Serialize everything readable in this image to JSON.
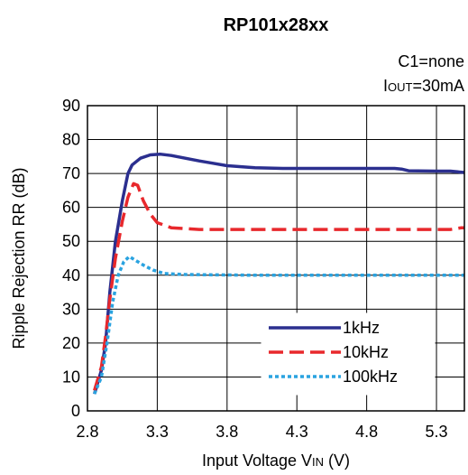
{
  "chart_data": {
    "type": "line",
    "title": "RP101x28xx",
    "annotations": {
      "line1": "C1=none",
      "line2_main": "I",
      "line2_sub": "OUT",
      "line2_rest": "=30mA"
    },
    "xlabel": {
      "main": "Input Voltage V",
      "sub": "IN",
      "rest": " (V)"
    },
    "ylabel": "Ripple Rejection RR (dB)",
    "xlim": [
      2.8,
      5.5
    ],
    "ylim": [
      0,
      90
    ],
    "xticks": [
      "2.8",
      "3.3",
      "3.8",
      "4.3",
      "4.8",
      "5.3"
    ],
    "yticks": [
      "0",
      "10",
      "20",
      "30",
      "40",
      "50",
      "60",
      "70",
      "80",
      "90"
    ],
    "grid": true,
    "legend_position": "bottom-right",
    "series": [
      {
        "name": "1kHz",
        "color": "#2b2f8f",
        "dash": "solid",
        "points": [
          [
            2.85,
            5
          ],
          [
            2.9,
            12
          ],
          [
            2.93,
            20
          ],
          [
            2.96,
            35
          ],
          [
            3.0,
            50
          ],
          [
            3.05,
            62
          ],
          [
            3.09,
            70
          ],
          [
            3.12,
            72.5
          ],
          [
            3.18,
            74.5
          ],
          [
            3.25,
            75.5
          ],
          [
            3.32,
            75.7
          ],
          [
            3.4,
            75.3
          ],
          [
            3.5,
            74.5
          ],
          [
            3.6,
            73.7
          ],
          [
            3.7,
            73.0
          ],
          [
            3.8,
            72.3
          ],
          [
            3.9,
            72.0
          ],
          [
            4.0,
            71.7
          ],
          [
            4.2,
            71.5
          ],
          [
            4.5,
            71.5
          ],
          [
            4.8,
            71.5
          ],
          [
            5.0,
            71.5
          ],
          [
            5.05,
            71.3
          ],
          [
            5.1,
            70.8
          ],
          [
            5.3,
            70.7
          ],
          [
            5.4,
            70.7
          ],
          [
            5.5,
            70.3
          ]
        ]
      },
      {
        "name": "10kHz",
        "color": "#e8282c",
        "dash": "dashed",
        "points": [
          [
            2.85,
            6
          ],
          [
            2.9,
            13
          ],
          [
            2.93,
            22
          ],
          [
            2.96,
            33
          ],
          [
            3.0,
            45
          ],
          [
            3.05,
            56
          ],
          [
            3.09,
            63
          ],
          [
            3.13,
            67
          ],
          [
            3.16,
            66.5
          ],
          [
            3.2,
            62
          ],
          [
            3.25,
            58
          ],
          [
            3.3,
            55.5
          ],
          [
            3.4,
            54
          ],
          [
            3.6,
            53.5
          ],
          [
            4.0,
            53.5
          ],
          [
            4.5,
            53.5
          ],
          [
            5.0,
            53.5
          ],
          [
            5.4,
            53.5
          ],
          [
            5.48,
            54
          ],
          [
            5.5,
            54
          ]
        ]
      },
      {
        "name": "100kHz",
        "color": "#2aa3e0",
        "dash": "dotted",
        "points": [
          [
            2.85,
            5
          ],
          [
            2.9,
            10
          ],
          [
            2.94,
            20
          ],
          [
            2.98,
            32
          ],
          [
            3.02,
            40
          ],
          [
            3.06,
            44
          ],
          [
            3.1,
            45.5
          ],
          [
            3.14,
            44.5
          ],
          [
            3.2,
            43
          ],
          [
            3.27,
            41.5
          ],
          [
            3.35,
            40.5
          ],
          [
            3.5,
            40.2
          ],
          [
            4.0,
            40
          ],
          [
            4.5,
            40
          ],
          [
            5.0,
            40
          ],
          [
            5.5,
            40
          ]
        ]
      }
    ]
  }
}
